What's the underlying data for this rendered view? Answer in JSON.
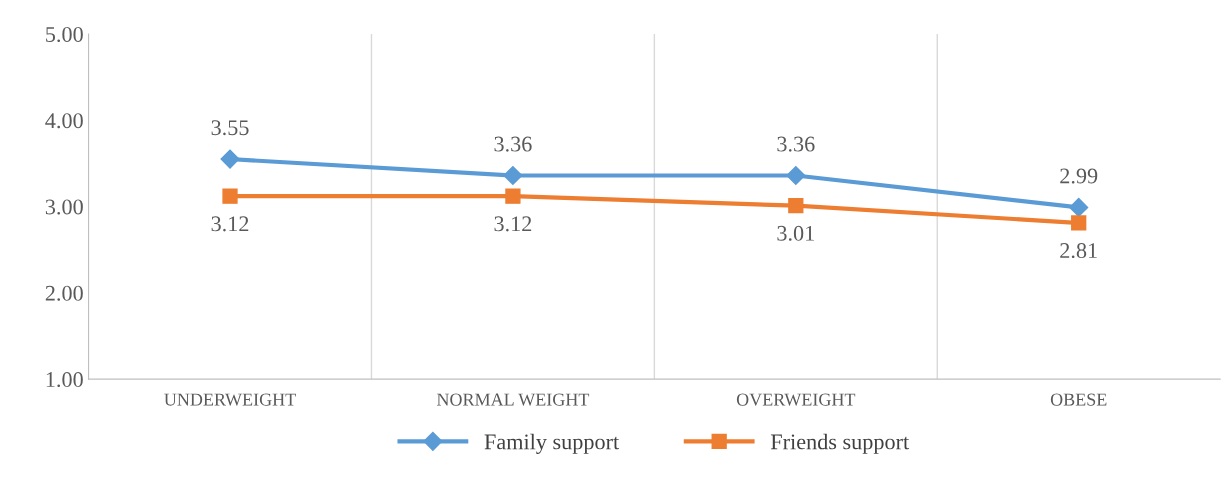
{
  "chart_data": {
    "type": "line",
    "categories": [
      "UNDERWEIGHT",
      "NORMAL WEIGHT",
      "OVERWEIGHT",
      "OBESE"
    ],
    "series": [
      {
        "name": "Family support",
        "color": "#5b9bd5",
        "marker": "diamond",
        "values": [
          3.55,
          3.36,
          3.36,
          2.99
        ]
      },
      {
        "name": "Friends support",
        "color": "#ed7d31",
        "marker": "square",
        "values": [
          3.12,
          3.12,
          3.01,
          2.81
        ]
      }
    ],
    "ylim": [
      1,
      5
    ],
    "yticks": [
      {
        "value": 1,
        "label": "1.00"
      },
      {
        "value": 2,
        "label": "2.00"
      },
      {
        "value": 3,
        "label": "3.00"
      },
      {
        "value": 4,
        "label": "4.00"
      },
      {
        "value": 5,
        "label": "5.00"
      }
    ],
    "grid": "x",
    "legend": "bottom",
    "data_labels": true,
    "line_style": "solid"
  }
}
